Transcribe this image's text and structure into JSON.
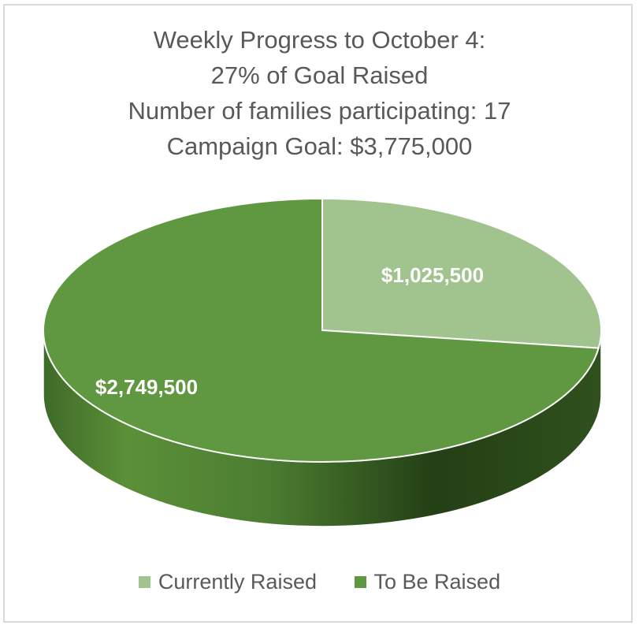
{
  "chart_data": {
    "type": "pie",
    "title_lines": [
      "Weekly Progress to October 4:",
      "27% of Goal Raised",
      "Number of families participating: 17",
      "Campaign Goal: $3,775,000"
    ],
    "slices": [
      {
        "name": "Currently Raised",
        "value": 1025500,
        "label": "$1,025,500",
        "color": "#a1c48e"
      },
      {
        "name": "To Be Raised",
        "value": 2749500,
        "label": "$2,749,500",
        "color": "#5f9840"
      }
    ],
    "legend_position": "bottom",
    "style": "3d"
  }
}
